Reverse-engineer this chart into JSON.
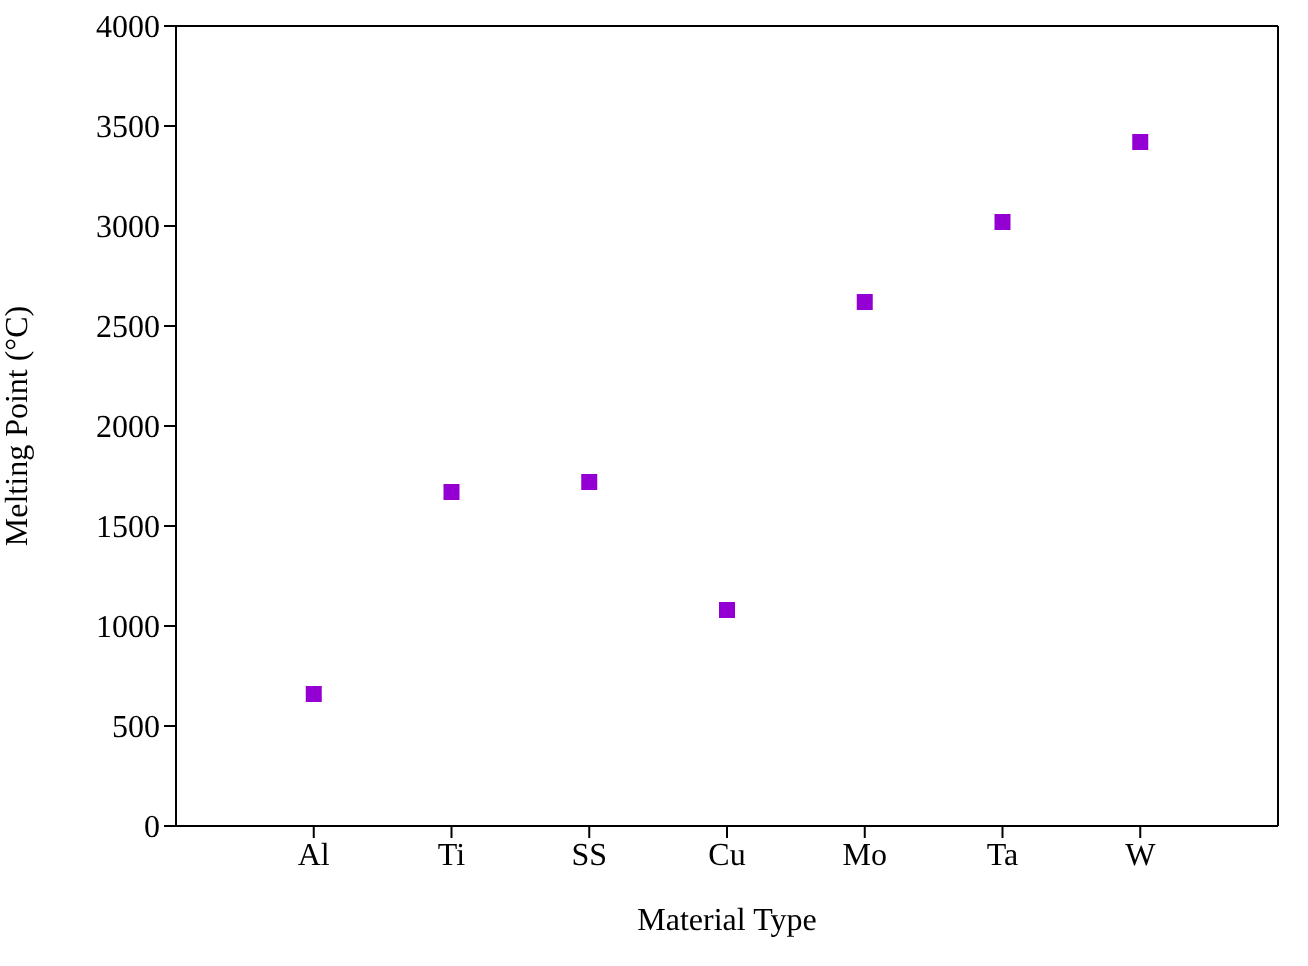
{
  "chart_data": {
    "type": "scatter",
    "xlabel": "Material Type",
    "ylabel": "Melting Point (°C)",
    "categories": [
      "Al",
      "Ti",
      "SS",
      "Cu",
      "Mo",
      "Ta",
      "W"
    ],
    "series": [
      {
        "color": "#9400d3",
        "values": [
          660,
          1670,
          1720,
          1080,
          2620,
          3020,
          3420
        ]
      }
    ],
    "ylim": [
      0,
      4000
    ],
    "yticks": [
      0,
      500,
      1000,
      1500,
      2000,
      2500,
      3000,
      3500,
      4000
    ],
    "legend": false,
    "marker": "square"
  }
}
